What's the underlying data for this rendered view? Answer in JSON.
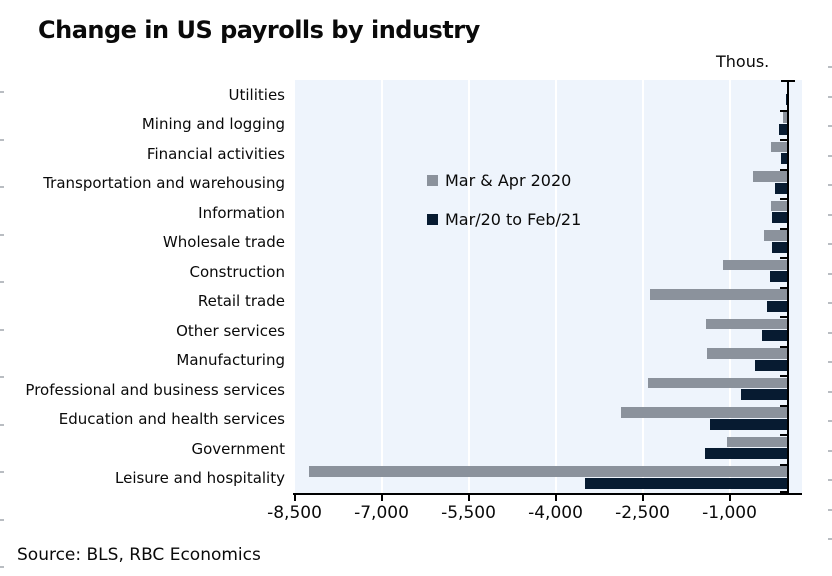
{
  "chart_data": {
    "type": "bar",
    "orientation": "horizontal",
    "title": "Change in US payrolls by industry",
    "unit_label": "Thous.",
    "source": "Source: BLS, RBC Economics",
    "categories": [
      "Utilities",
      "Mining and logging",
      "Financial activities",
      "Transportation and warehousing",
      "Information",
      "Wholesale trade",
      "Construction",
      "Retail trade",
      "Other services",
      "Manufacturing",
      "Professional and business services",
      "Education and health services",
      "Government",
      "Leisure and hospitality"
    ],
    "series": [
      {
        "name": "Mar & Apr 2020",
        "color": "#8b929c",
        "values": [
          -10,
          -75,
          -280,
          -590,
          -290,
          -410,
          -1110,
          -2370,
          -1400,
          -1380,
          -2400,
          -2870,
          -1040,
          -8250
        ]
      },
      {
        "name": "Mar/20 to Feb/21",
        "color": "#071b31",
        "values": [
          -20,
          -140,
          -120,
          -210,
          -265,
          -270,
          -300,
          -360,
          -440,
          -560,
          -810,
          -1330,
          -1420,
          -3490
        ]
      }
    ],
    "x_ticks": [
      "-8,500",
      "-7,000",
      "-5,500",
      "-4,000",
      "-2,500",
      "-1,000"
    ],
    "tick_values": [
      -8500,
      -7000,
      -5500,
      -4000,
      -2500,
      -1000
    ],
    "xlim": [
      -8750,
      250
    ],
    "grid": true,
    "legend_position": "inside-upper-middle"
  },
  "colors": {
    "plot_bg": "#eef4fc",
    "grid": "#ffffff",
    "axis": "#000000",
    "edge_dash": "#b9bdc2"
  }
}
